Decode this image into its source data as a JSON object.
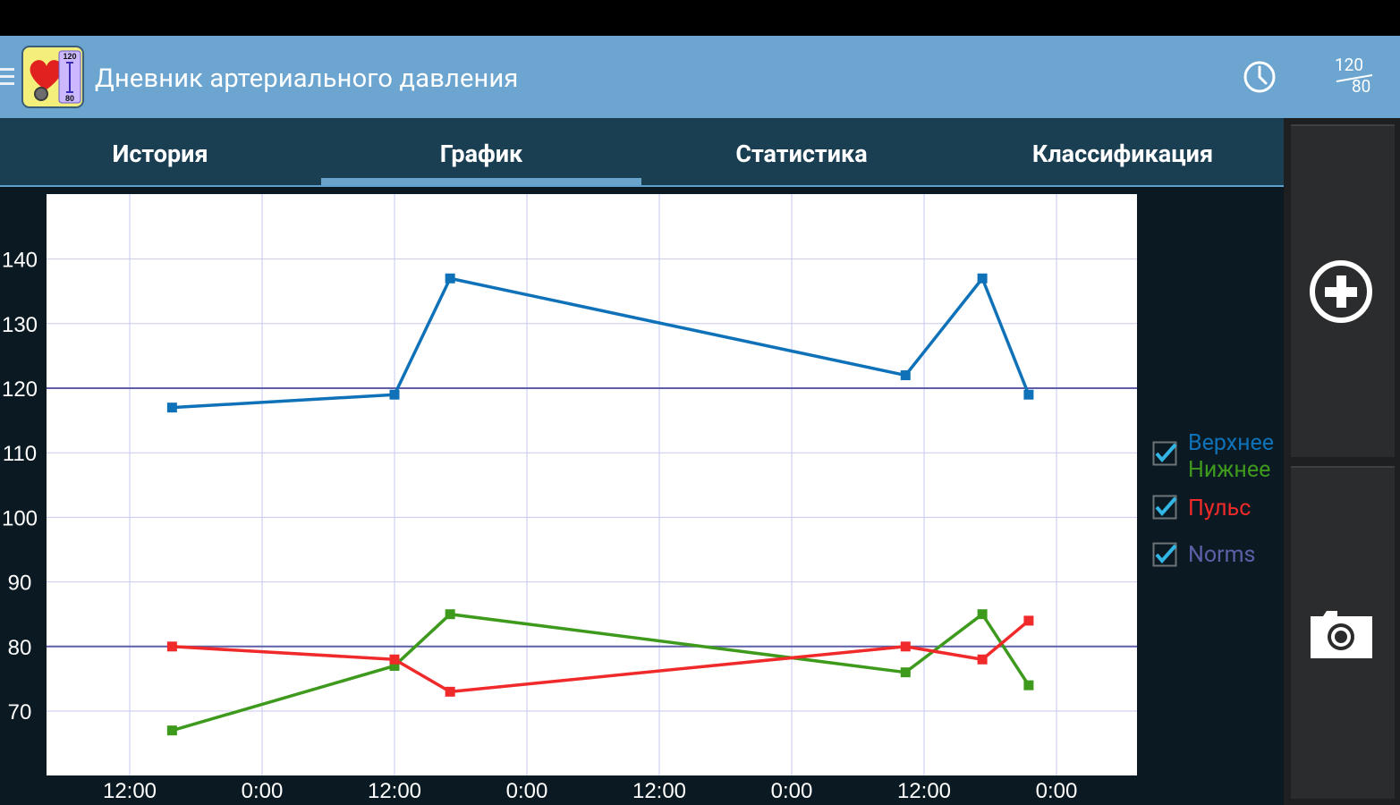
{
  "app": {
    "title": "Дневник артериального давления",
    "logo_icon": "heart-pressure-logo-icon",
    "logo_top": "120",
    "logo_bottom": "80"
  },
  "actions": {
    "history_icon": "clock-icon",
    "norm_top": "120",
    "norm_bottom": "80",
    "add_icon": "plus-circle-icon",
    "camera_icon": "camera-icon"
  },
  "tabs": [
    {
      "label": "История",
      "selected": false
    },
    {
      "label": "График",
      "selected": true
    },
    {
      "label": "Статистика",
      "selected": false
    },
    {
      "label": "Классификация",
      "selected": false
    }
  ],
  "legend": [
    {
      "label": "Верхнее",
      "color": "#0f72b8",
      "checked": true
    },
    {
      "label": "Нижнее",
      "color": "#3e9a1c",
      "checked": true
    },
    {
      "label": "Пульс",
      "color": "#f02a2a",
      "checked": true
    },
    {
      "label": "Norms",
      "color": "#5e5fa8",
      "checked": true
    }
  ],
  "chart_data": {
    "type": "line",
    "y_ticks": [
      "140",
      "130",
      "120",
      "110",
      "100",
      "90",
      "80",
      "70"
    ],
    "x_ticks": [
      "12:00",
      "0:00",
      "12:00",
      "0:00",
      "12:00",
      "0:00",
      "12:00",
      "0:00"
    ],
    "norm_lines": [
      120,
      80
    ],
    "series": [
      {
        "name": "Верхнее",
        "color": "#0f72b8",
        "values": [
          117,
          119,
          137,
          122,
          137,
          119
        ]
      },
      {
        "name": "Нижнее",
        "color": "#3e9a1c",
        "values": [
          67,
          77,
          85,
          76,
          85,
          74
        ]
      },
      {
        "name": "Пульс",
        "color": "#f02a2a",
        "values": [
          80,
          78,
          73,
          80,
          78,
          84
        ]
      }
    ],
    "x_points": [
      0.32,
      2.0,
      2.42,
      5.86,
      6.44,
      6.79
    ],
    "ylim": [
      60,
      150
    ],
    "grid": true
  }
}
